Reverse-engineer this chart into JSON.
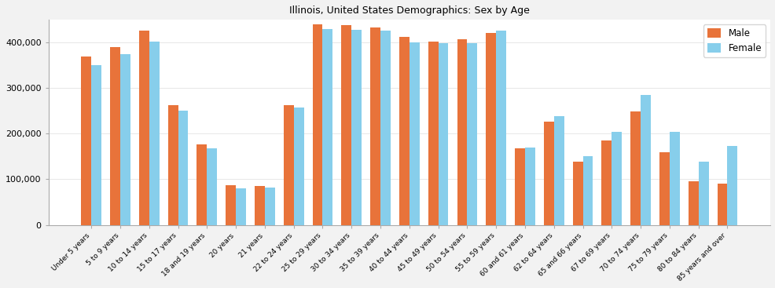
{
  "title": "Illinois, United States Demographics: Sex by Age",
  "categories": [
    "Under 5 years",
    "5 to 9 years",
    "10 to 14 years",
    "15 to 17 years",
    "18 and 19 years",
    "20 years",
    "21 years",
    "22 to 24 years",
    "25 to 29 years",
    "30 to 34 years",
    "35 to 39 years",
    "40 to 44 years",
    "45 to 49 years",
    "50 to 54 years",
    "55 to 59 years",
    "60 and 61 years",
    "62 to 64 years",
    "65 and 66 years",
    "67 to 69 years",
    "70 to 74 years",
    "75 to 79 years",
    "80 to 84 years",
    "85 years and over"
  ],
  "male": [
    369000,
    391000,
    426000,
    262000,
    177000,
    87000,
    85000,
    262000,
    441000,
    439000,
    434000,
    413000,
    402000,
    408000,
    421000,
    168000,
    227000,
    138000,
    185000,
    249000,
    159000,
    96000,
    90000
  ],
  "female": [
    350000,
    375000,
    403000,
    250000,
    168000,
    80000,
    81000,
    257000,
    430000,
    428000,
    426000,
    400000,
    398000,
    398000,
    427000,
    170000,
    238000,
    151000,
    204000,
    285000,
    204000,
    139000,
    173000
  ],
  "male_color": "#E8733A",
  "female_color": "#87CEEB",
  "ylim": [
    0,
    450000
  ],
  "yticks": [
    0,
    100000,
    200000,
    300000,
    400000
  ],
  "ytick_labels": [
    "0",
    "100,000",
    "200,000",
    "300,000",
    "400,000"
  ],
  "bar_width": 0.35,
  "figsize": [
    9.87,
    3.67
  ],
  "dpi": 100,
  "fig_facecolor": "#f2f2f2",
  "ax_facecolor": "#ffffff"
}
